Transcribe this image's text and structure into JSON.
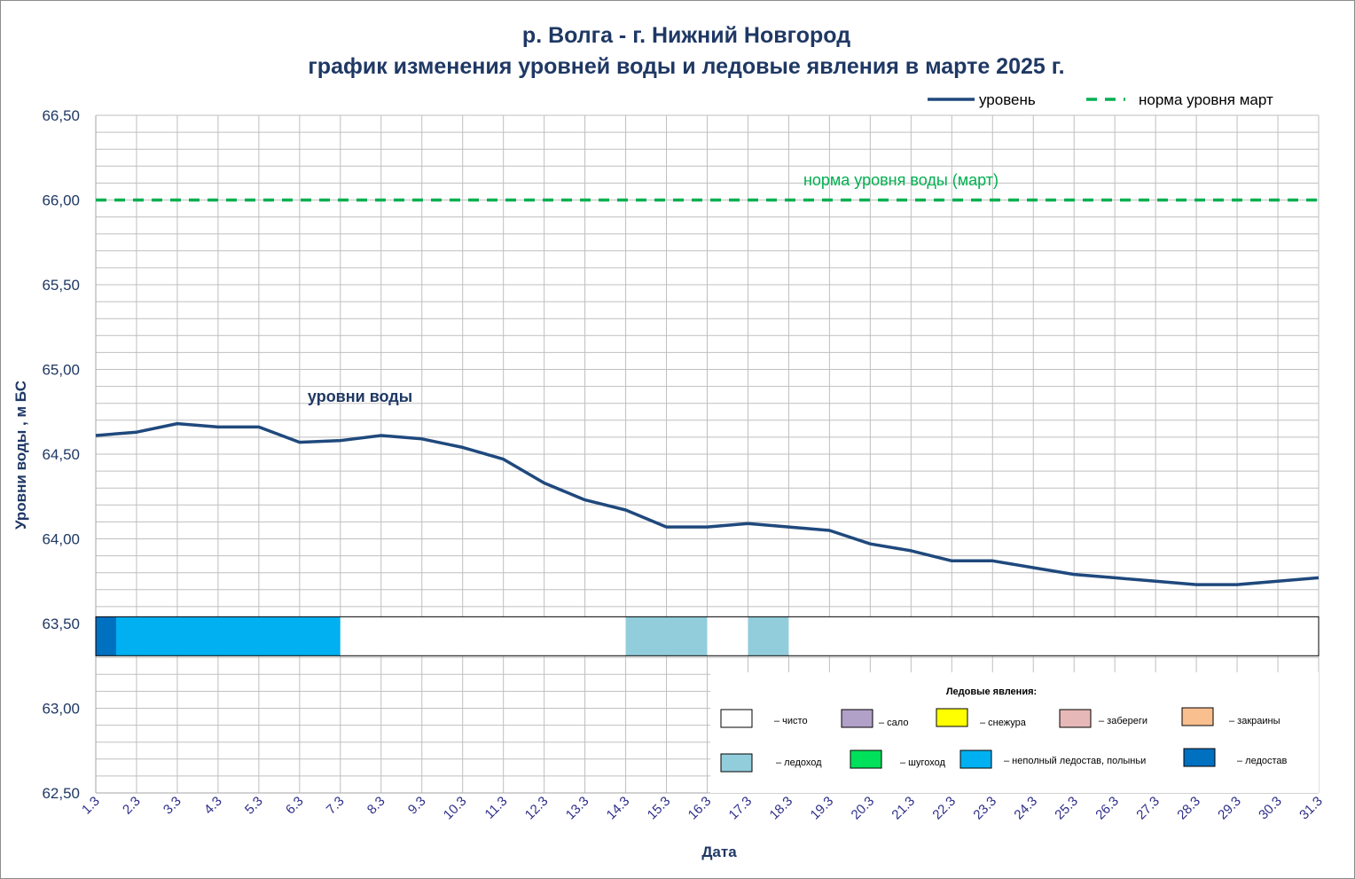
{
  "chart_data": {
    "type": "line",
    "title": "р. Волга - г. Нижний Новгород",
    "subtitle": "график изменения уровней воды и ледовые явления в марте 2025 г.",
    "xlabel": "Дата",
    "ylabel": "Уровни воды , м БС",
    "ylim": [
      62.5,
      66.5
    ],
    "y_ticks": [
      "66,50",
      "66,00",
      "65,50",
      "65,00",
      "64,50",
      "64,00",
      "63,50",
      "63,00",
      "62,50"
    ],
    "y_tick_values": [
      66.5,
      66.0,
      65.5,
      65.0,
      64.5,
      64.0,
      63.5,
      63.0,
      62.5
    ],
    "grid": true,
    "legend_position": "top-right",
    "categories": [
      "1.3",
      "2.3",
      "3.3",
      "4.3",
      "5.3",
      "6.3",
      "7.3",
      "8.3",
      "9.3",
      "10.3",
      "11.3",
      "12.3",
      "13.3",
      "14.3",
      "15.3",
      "16.3",
      "17.3",
      "18.3",
      "19.3",
      "20.3",
      "21.3",
      "22.3",
      "23.3",
      "24.3",
      "25.3",
      "26.3",
      "27.3",
      "28.3",
      "29.3",
      "30.3",
      "31.3"
    ],
    "series": [
      {
        "name": "уровень",
        "color": "#1f497d",
        "style": "solid",
        "values": [
          64.61,
          64.63,
          64.68,
          64.66,
          64.66,
          64.57,
          64.58,
          64.61,
          64.59,
          64.54,
          64.47,
          64.33,
          64.23,
          64.17,
          64.07,
          64.07,
          64.09,
          64.07,
          64.05,
          63.97,
          63.93,
          63.87,
          63.87,
          63.83,
          63.79,
          63.77,
          63.75,
          63.73,
          63.73,
          63.75,
          63.77
        ]
      },
      {
        "name": "норма уровня март",
        "color": "#00b050",
        "style": "dashed",
        "values": [
          66.0,
          66.0,
          66.0,
          66.0,
          66.0,
          66.0,
          66.0,
          66.0,
          66.0,
          66.0,
          66.0,
          66.0,
          66.0,
          66.0,
          66.0,
          66.0,
          66.0,
          66.0,
          66.0,
          66.0,
          66.0,
          66.0,
          66.0,
          66.0,
          66.0,
          66.0,
          66.0,
          66.0,
          66.0,
          66.0,
          66.0
        ]
      }
    ],
    "annotations": {
      "norm_label": "норма уровня воды  (март)",
      "level_label": "уровни воды"
    },
    "ice_band": {
      "y_range": [
        63.31,
        63.54
      ],
      "segments": [
        {
          "from": 1.0,
          "to": 1.5,
          "type": "ледостав"
        },
        {
          "from": 1.5,
          "to": 7.0,
          "type": "неполный ледостав, полыньи"
        },
        {
          "from": 7.0,
          "to": 14.0,
          "type": "чисто"
        },
        {
          "from": 14.0,
          "to": 16.0,
          "type": "ледоход"
        },
        {
          "from": 16.0,
          "to": 17.0,
          "type": "чисто"
        },
        {
          "from": 17.0,
          "to": 18.0,
          "type": "ледоход"
        },
        {
          "from": 18.0,
          "to": 31.0,
          "type": "чисто"
        }
      ]
    },
    "ice_legend": {
      "title": "Ледовые явления:",
      "items": [
        {
          "label": "– чисто",
          "color": "#ffffff"
        },
        {
          "label": "– сало",
          "color": "#b1a0c7"
        },
        {
          "label": "– снежура",
          "color": "#ffff00"
        },
        {
          "label": "– забереги",
          "color": "#e6b8b7"
        },
        {
          "label": "– закраины",
          "color": "#fabf8f"
        },
        {
          "label": "– ледоход",
          "color": "#92cddc"
        },
        {
          "label": "– шугоход",
          "color": "#00e05a"
        },
        {
          "label": "– неполный ледостав, полыньи",
          "color": "#00b0f0"
        },
        {
          "label": "– ледостав",
          "color": "#0070c0"
        }
      ]
    }
  }
}
